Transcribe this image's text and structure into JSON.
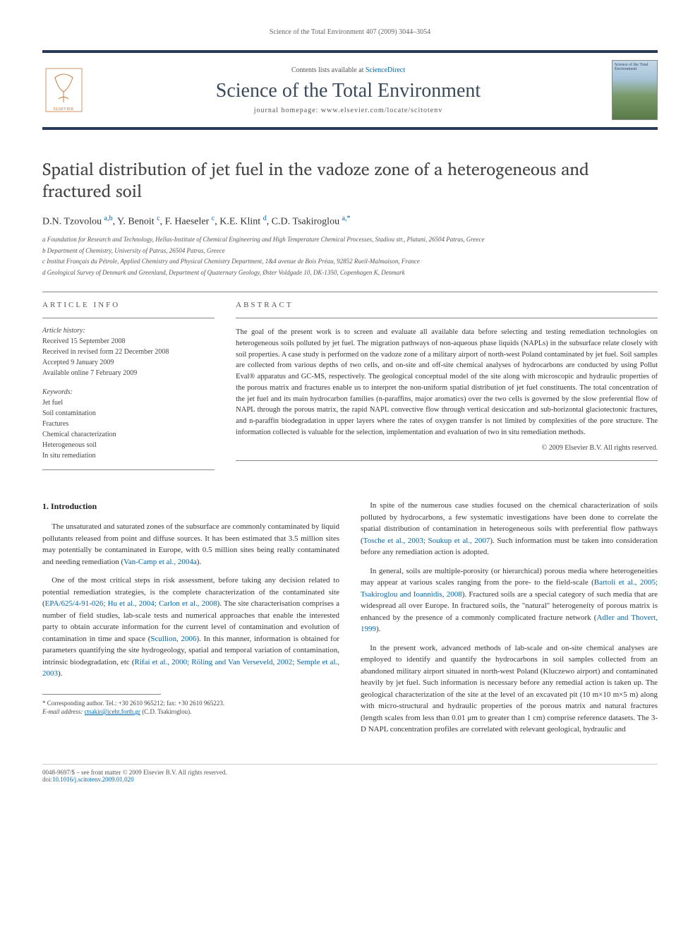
{
  "page_header": "Science of the Total Environment 407 (2009) 3044–3054",
  "masthead": {
    "contents_text": "Contents lists available at ",
    "contents_link": "ScienceDirect",
    "journal_name": "Science of the Total Environment",
    "homepage_label": "journal homepage: www.elsevier.com/locate/scitotenv",
    "cover_text": "Science of the Total Environment"
  },
  "article": {
    "title": "Spatial distribution of jet fuel in the vadoze zone of a heterogeneous and fractured soil",
    "authors_html": "D.N. Tzovolou <sup>a,b</sup>, Y. Benoit <sup>c</sup>, F. Haeseler <sup>c</sup>, K.E. Klint <sup>d</sup>, C.D. Tsakiroglou <sup>a,*</sup>",
    "affiliations": [
      "a Foundation for Research and Technology, Hellas-Institute of Chemical Engineering and High Temperature Chemical Processes, Stadiou str., Platani, 26504 Patras, Greece",
      "b Department of Chemistry, University of Patras, 26504 Patras, Greece",
      "c Institut Français du Pétrole, Applied Chemistry and Physical Chemistry Department, 1&4 avenue de Bois Préau, 92852 Rueil-Malmaison, France",
      "d Geological Survey of Denmark and Greenland, Department of Quaternary Geology, Øster Voldgade 10, DK-1350, Copenhagen K, Denmark"
    ]
  },
  "info": {
    "heading": "ARTICLE INFO",
    "history_label": "Article history:",
    "history": [
      "Received 15 September 2008",
      "Received in revised form 22 December 2008",
      "Accepted 9 January 2009",
      "Available online 7 February 2009"
    ],
    "keywords_label": "Keywords:",
    "keywords": [
      "Jet fuel",
      "Soil contamination",
      "Fractures",
      "Chemical characterization",
      "Heterogeneous soil",
      "In situ remediation"
    ]
  },
  "abstract": {
    "heading": "ABSTRACT",
    "text": "The goal of the present work is to screen and evaluate all available data before selecting and testing remediation technologies on heterogeneous soils polluted by jet fuel. The migration pathways of non-aqueous phase liquids (NAPLs) in the subsurface relate closely with soil properties. A case study is performed on the vadoze zone of a military airport of north-west Poland contaminated by jet fuel. Soil samples are collected from various depths of two cells, and on-site and off-site chemical analyses of hydrocarbons are conducted by using Pollut Eval® apparatus and GC-MS, respectively. The geological conceptual model of the site along with microscopic and hydraulic properties of the porous matrix and fractures enable us to interpret the non-uniform spatial distribution of jet fuel constituents. The total concentration of the jet fuel and its main hydrocarbon families (n-paraffins, major aromatics) over the two cells is governed by the slow preferential flow of NAPL through the porous matrix, the rapid NAPL convective flow through vertical desiccation and sub-horizontal glaciotectonic fractures, and n-paraffin biodegradation in upper layers where the rates of oxygen transfer is not limited by complexities of the pore structure. The information collected is valuable for the selection, implementation and evaluation of two in situ remediation methods.",
    "copyright": "© 2009 Elsevier B.V. All rights reserved."
  },
  "body": {
    "section_heading": "1. Introduction",
    "left_paragraphs": [
      "The unsaturated and saturated zones of the subsurface are commonly contaminated by liquid pollutants released from point and diffuse sources. It has been estimated that 3.5 million sites may potentially be contaminated in Europe, with 0.5 million sites being really contaminated and needing remediation (<span class=\"cite\">Van-Camp et al., 2004a</span>).",
      "One of the most critical steps in risk assessment, before taking any decision related to potential remediation strategies, is the complete characterization of the contaminated site (<span class=\"cite\">EPA/625/4-91-026; Hu et al., 2004; Carlon et al., 2008</span>). The site characterisation comprises a number of field studies, lab-scale tests and numerical approaches that enable the interested party to obtain accurate information for the current level of contamination and evolution of contamination in time and space (<span class=\"cite\">Scullion, 2006</span>). In this manner, information is obtained for parameters quantifying the site hydrogeology, spatial and temporal variation of contamination, intrinsic biodegradation, etc (<span class=\"cite\">Rifai et al., 2000; Röling and Van Verseveld, 2002; Semple et al., 2003</span>)."
    ],
    "right_paragraphs": [
      "In spite of the numerous case studies focused on the chemical characterization of soils polluted by hydrocarbons, a few systematic investigations have been done to correlate the spatial distribution of contamination in heterogeneous soils with preferential flow pathways (<span class=\"cite\">Tosche et al., 2003; Soukup et al., 2007</span>). Such information must be taken into consideration before any remediation action is adopted.",
      "In general, soils are multiple-porosity (or hierarchical) porous media where heterogeneities may appear at various scales ranging from the pore- to the field-scale (<span class=\"cite\">Bartoli et al., 2005; Tsakiroglou and Ioannidis, 2008</span>). Fractured soils are a special category of such media that are widespread all over Europe. In fractured soils, the \"natural\" heterogeneity of porous matrix is enhanced by the presence of a commonly complicated fracture network (<span class=\"cite\">Adler and Thovert, 1999</span>).",
      "In the present work, advanced methods of lab-scale and on-site chemical analyses are employed to identify and quantify the hydrocarbons in soil samples collected from an abandoned military airport situated in north-west Poland (Kluczewo airport) and contaminated heavily by jet fuel. Such information is necessary before any remedial action is taken up. The geological characterization of the site at the level of an excavated pit (10 m×10 m×5 m) along with micro-structural and hydraulic properties of the porous matrix and natural fractures (length scales from less than 0.01 μm to greater than 1 cm) comprise reference datasets. The 3-D NAPL concentration profiles are correlated with relevant geological, hydraulic and"
    ]
  },
  "footnote": {
    "line1": "* Corresponding author. Tel.: +30 2610 965212; fax: +30 2610 965223.",
    "line2_label": "E-mail address: ",
    "line2_email": "ctsakir@iceht.forth.gr",
    "line2_tail": " (C.D. Tsakiroglou)."
  },
  "footer": {
    "left_line1": "0048-9697/$ – see front matter © 2009 Elsevier B.V. All rights reserved.",
    "left_line2_label": "doi:",
    "left_line2_link": "10.1016/j.scitotenv.2009.01.020"
  },
  "colors": {
    "rule": "#2a3a5a",
    "link": "#0066aa",
    "text": "#333333",
    "muted": "#666666"
  }
}
